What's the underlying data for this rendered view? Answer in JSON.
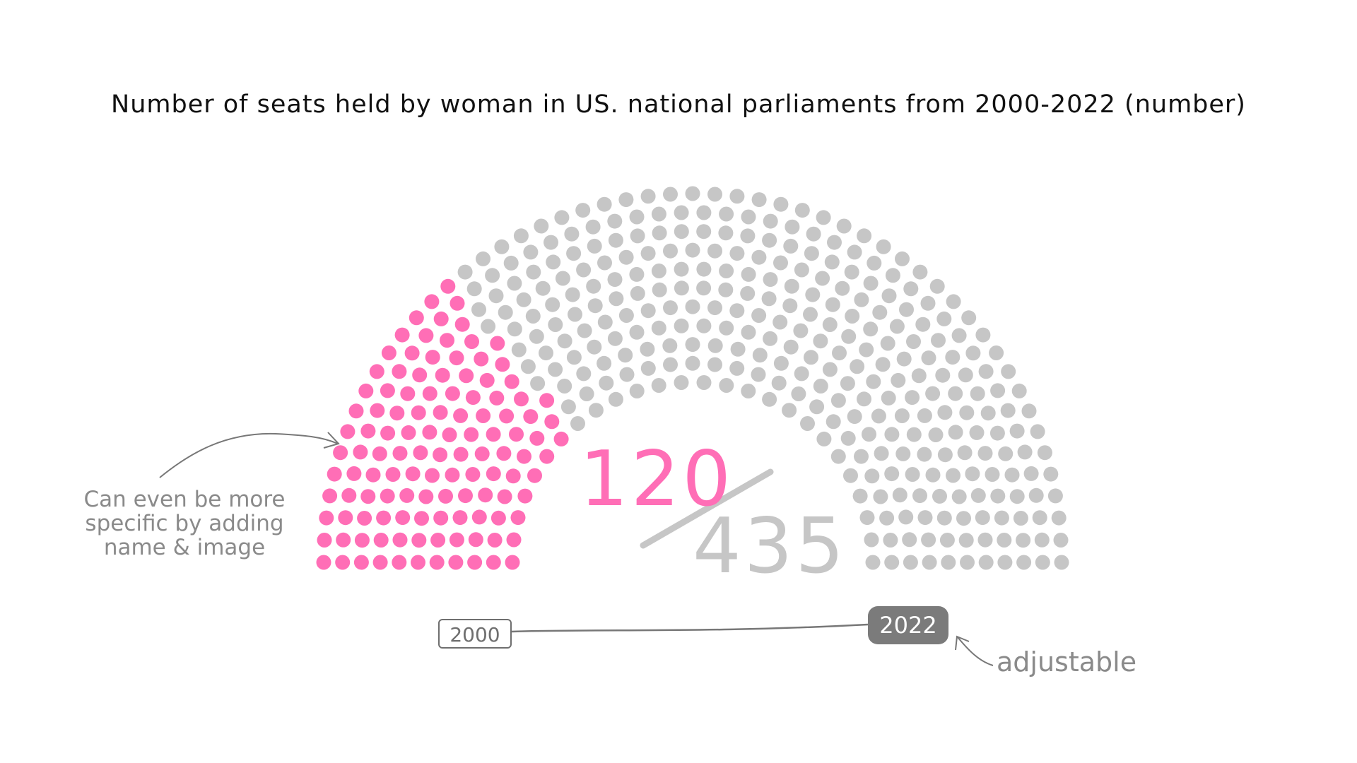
{
  "chart_data": {
    "type": "parliament",
    "title": "Number of seats held by woman in US. national parliaments from 2000-2022 (number)",
    "seats_women": "120",
    "seats_total": "435",
    "values": [
      120,
      435
    ],
    "colors": {
      "women": "#ff6eb6",
      "other": "#c6c6c6"
    },
    "annotation_left": "Can even be more specific by adding name & image",
    "annotation_right": "adjustable",
    "slider": {
      "start": "2000",
      "end": "2022"
    }
  }
}
